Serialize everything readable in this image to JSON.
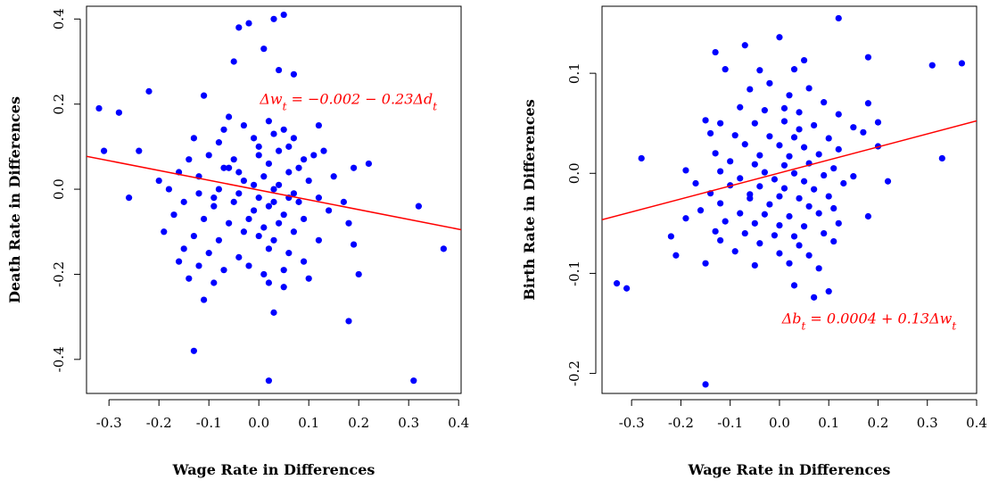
{
  "chart_data": [
    {
      "type": "scatter",
      "title": "",
      "xlabel": "Wage Rate in Differences",
      "ylabel": "Death Rate in Differences",
      "xlim": [
        -0.345,
        0.405
      ],
      "ylim": [
        -0.48,
        0.43
      ],
      "x_ticks": [
        -0.3,
        -0.2,
        -0.1,
        0.0,
        0.1,
        0.2,
        0.3,
        0.4
      ],
      "x_tick_labels": [
        "-0.3",
        "-0.2",
        "-0.1",
        "0.0",
        "0.1",
        "0.2",
        "0.3",
        "0.4"
      ],
      "y_ticks": [
        -0.4,
        -0.2,
        0.0,
        0.2,
        0.4
      ],
      "y_tick_labels": [
        "-0.4",
        "-0.2",
        "0.0",
        "0.2",
        "0.4"
      ],
      "grid": false,
      "point_color": "#0000ff",
      "line_color": "#ff0000",
      "fit_line": {
        "intercept": -0.002,
        "slope": -0.23
      },
      "annotation": {
        "text": "Δw_t = −0.002 − 0.23Δd_t",
        "x": 0.002,
        "y": 0.2
      },
      "points": [
        [
          0.05,
          0.41
        ],
        [
          0.03,
          0.4
        ],
        [
          -0.02,
          0.39
        ],
        [
          -0.04,
          0.38
        ],
        [
          0.01,
          0.33
        ],
        [
          -0.05,
          0.3
        ],
        [
          0.04,
          0.28
        ],
        [
          0.07,
          0.27
        ],
        [
          -0.22,
          0.23
        ],
        [
          -0.11,
          0.22
        ],
        [
          -0.32,
          0.19
        ],
        [
          -0.28,
          0.18
        ],
        [
          -0.06,
          0.17
        ],
        [
          -0.03,
          0.15
        ],
        [
          0.02,
          0.16
        ],
        [
          0.05,
          0.14
        ],
        [
          0.12,
          0.15
        ],
        [
          -0.13,
          0.12
        ],
        [
          -0.08,
          0.11
        ],
        [
          -0.01,
          0.12
        ],
        [
          0.03,
          0.13
        ],
        [
          0.06,
          0.1
        ],
        [
          -0.24,
          0.09
        ],
        [
          -0.31,
          0.09
        ],
        [
          -0.14,
          0.07
        ],
        [
          -0.1,
          0.08
        ],
        [
          -0.05,
          0.07
        ],
        [
          0.0,
          0.08
        ],
        [
          0.04,
          0.09
        ],
        [
          0.09,
          0.07
        ],
        [
          0.11,
          0.08
        ],
        [
          0.13,
          0.09
        ],
        [
          0.19,
          0.05
        ],
        [
          0.22,
          0.06
        ],
        [
          -0.16,
          0.04
        ],
        [
          -0.12,
          0.03
        ],
        [
          -0.07,
          0.05
        ],
        [
          -0.03,
          0.02
        ],
        [
          0.01,
          0.03
        ],
        [
          0.06,
          0.04
        ],
        [
          0.1,
          0.02
        ],
        [
          0.15,
          0.03
        ],
        [
          -0.2,
          0.02
        ],
        [
          -0.18,
          0.0
        ],
        [
          -0.12,
          -0.01
        ],
        [
          -0.08,
          0.0
        ],
        [
          -0.04,
          -0.01
        ],
        [
          0.0,
          -0.02
        ],
        [
          0.03,
          0.0
        ],
        [
          0.07,
          -0.01
        ],
        [
          0.12,
          -0.02
        ],
        [
          0.17,
          -0.03
        ],
        [
          -0.26,
          -0.02
        ],
        [
          -0.15,
          -0.03
        ],
        [
          -0.09,
          -0.04
        ],
        [
          -0.05,
          -0.03
        ],
        [
          -0.01,
          -0.05
        ],
        [
          0.02,
          -0.04
        ],
        [
          0.05,
          -0.06
        ],
        [
          0.08,
          -0.03
        ],
        [
          0.14,
          -0.05
        ],
        [
          0.32,
          -0.04
        ],
        [
          -0.17,
          -0.06
        ],
        [
          -0.11,
          -0.07
        ],
        [
          -0.06,
          -0.08
        ],
        [
          -0.02,
          -0.07
        ],
        [
          0.01,
          -0.09
        ],
        [
          0.04,
          -0.08
        ],
        [
          0.09,
          -0.07
        ],
        [
          0.18,
          -0.08
        ],
        [
          -0.19,
          -0.1
        ],
        [
          -0.13,
          -0.11
        ],
        [
          -0.08,
          -0.12
        ],
        [
          -0.03,
          -0.1
        ],
        [
          0.0,
          -0.11
        ],
        [
          0.03,
          -0.12
        ],
        [
          0.07,
          -0.1
        ],
        [
          0.12,
          -0.12
        ],
        [
          -0.15,
          -0.14
        ],
        [
          -0.1,
          -0.15
        ],
        [
          -0.04,
          -0.16
        ],
        [
          0.02,
          -0.14
        ],
        [
          0.06,
          -0.15
        ],
        [
          0.19,
          -0.13
        ],
        [
          -0.16,
          -0.17
        ],
        [
          -0.12,
          -0.18
        ],
        [
          -0.07,
          -0.19
        ],
        [
          -0.02,
          -0.18
        ],
        [
          0.01,
          -0.2
        ],
        [
          0.05,
          -0.19
        ],
        [
          0.09,
          -0.17
        ],
        [
          0.2,
          -0.2
        ],
        [
          -0.14,
          -0.21
        ],
        [
          -0.09,
          -0.22
        ],
        [
          0.02,
          -0.22
        ],
        [
          0.05,
          -0.23
        ],
        [
          0.1,
          -0.21
        ],
        [
          -0.11,
          -0.26
        ],
        [
          0.03,
          -0.29
        ],
        [
          0.18,
          -0.31
        ],
        [
          -0.13,
          -0.38
        ],
        [
          0.31,
          -0.45
        ],
        [
          0.02,
          -0.45
        ],
        [
          0.37,
          -0.14
        ],
        [
          -0.06,
          0.05
        ],
        [
          -0.01,
          0.01
        ],
        [
          0.04,
          0.01
        ],
        [
          0.06,
          -0.02
        ],
        [
          -0.04,
          0.04
        ],
        [
          0.02,
          0.06
        ],
        [
          0.08,
          0.05
        ],
        [
          -0.09,
          -0.02
        ],
        [
          0.03,
          -0.03
        ],
        [
          0.0,
          0.1
        ],
        [
          -0.07,
          0.14
        ],
        [
          0.07,
          0.12
        ]
      ]
    },
    {
      "type": "scatter",
      "title": "",
      "xlabel": "Wage Rate in Differences",
      "ylabel": "Birth Rate in Differences",
      "xlim": [
        -0.36,
        0.4
      ],
      "ylim": [
        -0.22,
        0.167
      ],
      "x_ticks": [
        -0.3,
        -0.2,
        -0.1,
        0.0,
        0.1,
        0.2,
        0.3,
        0.4
      ],
      "x_tick_labels": [
        "-0.3",
        "-0.2",
        "-0.1",
        "0.0",
        "0.1",
        "0.2",
        "0.3",
        "0.4"
      ],
      "y_ticks": [
        -0.2,
        -0.1,
        0.0,
        0.1
      ],
      "y_tick_labels": [
        "-0.2",
        "-0.1",
        "0.0",
        "0.1"
      ],
      "grid": false,
      "point_color": "#0000ff",
      "line_color": "#ff0000",
      "fit_line": {
        "intercept": 0.0004,
        "slope": 0.13
      },
      "annotation": {
        "text": "Δb_t = 0.0004 + 0.13Δw_t",
        "x": 0.005,
        "y": -0.15
      },
      "points": [
        [
          0.12,
          0.155
        ],
        [
          0.0,
          0.136
        ],
        [
          -0.07,
          0.128
        ],
        [
          0.05,
          0.113
        ],
        [
          0.18,
          0.116
        ],
        [
          0.31,
          0.108
        ],
        [
          0.37,
          0.11
        ],
        [
          -0.13,
          0.121
        ],
        [
          -0.11,
          0.104
        ],
        [
          -0.04,
          0.103
        ],
        [
          0.03,
          0.104
        ],
        [
          -0.02,
          0.09
        ],
        [
          0.06,
          0.085
        ],
        [
          -0.06,
          0.084
        ],
        [
          0.02,
          0.078
        ],
        [
          0.09,
          0.071
        ],
        [
          0.18,
          0.07
        ],
        [
          -0.08,
          0.066
        ],
        [
          -0.03,
          0.063
        ],
        [
          0.04,
          0.061
        ],
        [
          0.12,
          0.059
        ],
        [
          -0.15,
          0.053
        ],
        [
          -0.12,
          0.05
        ],
        [
          -0.05,
          0.05
        ],
        [
          0.01,
          0.052
        ],
        [
          0.07,
          0.048
        ],
        [
          0.15,
          0.046
        ],
        [
          0.2,
          0.051
        ],
        [
          -0.14,
          0.04
        ],
        [
          -0.09,
          0.038
        ],
        [
          -0.02,
          0.037
        ],
        [
          0.03,
          0.036
        ],
        [
          0.1,
          0.035
        ],
        [
          0.17,
          0.041
        ],
        [
          -0.07,
          0.029
        ],
        [
          0.0,
          0.028
        ],
        [
          0.05,
          0.026
        ],
        [
          0.12,
          0.024
        ],
        [
          0.2,
          0.027
        ],
        [
          -0.13,
          0.02
        ],
        [
          -0.04,
          0.018
        ],
        [
          0.02,
          0.017
        ],
        [
          0.08,
          0.019
        ],
        [
          0.33,
          0.015
        ],
        [
          -0.28,
          0.015
        ],
        [
          -0.1,
          0.012
        ],
        [
          -0.05,
          0.009
        ],
        [
          0.01,
          0.008
        ],
        [
          0.06,
          0.01
        ],
        [
          0.11,
          0.005
        ],
        [
          -0.19,
          0.003
        ],
        [
          -0.12,
          0.002
        ],
        [
          -0.03,
          0.001
        ],
        [
          0.03,
          0.0
        ],
        [
          0.09,
          -0.002
        ],
        [
          0.15,
          -0.003
        ],
        [
          -0.08,
          -0.005
        ],
        [
          -0.01,
          -0.006
        ],
        [
          0.05,
          -0.008
        ],
        [
          0.22,
          -0.008
        ],
        [
          -0.17,
          -0.01
        ],
        [
          -0.1,
          -0.012
        ],
        [
          -0.04,
          -0.013
        ],
        [
          0.01,
          -0.015
        ],
        [
          0.07,
          -0.016
        ],
        [
          0.13,
          -0.01
        ],
        [
          -0.14,
          -0.02
        ],
        [
          -0.06,
          -0.021
        ],
        [
          0.0,
          -0.023
        ],
        [
          0.04,
          -0.025
        ],
        [
          0.1,
          -0.023
        ],
        [
          -0.12,
          -0.03
        ],
        [
          -0.02,
          -0.031
        ],
        [
          0.06,
          -0.033
        ],
        [
          0.11,
          -0.035
        ],
        [
          -0.16,
          -0.037
        ],
        [
          -0.08,
          -0.04
        ],
        [
          -0.03,
          -0.041
        ],
        [
          0.02,
          -0.043
        ],
        [
          0.08,
          -0.04
        ],
        [
          0.18,
          -0.043
        ],
        [
          -0.19,
          -0.045
        ],
        [
          -0.11,
          -0.048
        ],
        [
          -0.05,
          -0.05
        ],
        [
          0.0,
          -0.052
        ],
        [
          0.05,
          -0.053
        ],
        [
          0.12,
          -0.05
        ],
        [
          -0.13,
          -0.058
        ],
        [
          -0.07,
          -0.06
        ],
        [
          -0.01,
          -0.062
        ],
        [
          0.03,
          -0.063
        ],
        [
          0.09,
          -0.06
        ],
        [
          -0.22,
          -0.063
        ],
        [
          -0.12,
          -0.067
        ],
        [
          -0.04,
          -0.07
        ],
        [
          0.04,
          -0.072
        ],
        [
          0.11,
          -0.068
        ],
        [
          -0.09,
          -0.078
        ],
        [
          0.0,
          -0.08
        ],
        [
          0.06,
          -0.082
        ],
        [
          -0.15,
          -0.09
        ],
        [
          -0.05,
          -0.092
        ],
        [
          0.02,
          -0.09
        ],
        [
          0.08,
          -0.095
        ],
        [
          -0.33,
          -0.11
        ],
        [
          -0.31,
          -0.115
        ],
        [
          0.03,
          -0.112
        ],
        [
          0.07,
          -0.124
        ],
        [
          0.1,
          -0.118
        ],
        [
          -0.15,
          -0.211
        ],
        [
          -0.21,
          -0.082
        ],
        [
          0.01,
          0.065
        ],
        [
          -0.06,
          -0.025
        ],
        [
          0.04,
          0.044
        ]
      ]
    }
  ]
}
